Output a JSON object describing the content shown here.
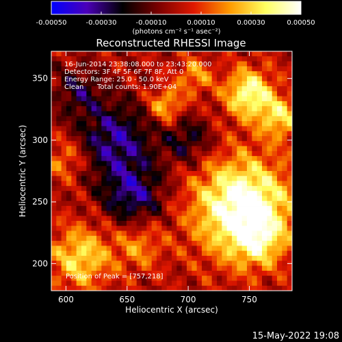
{
  "chart_data": {
    "type": "heatmap",
    "title": "Reconstructed RHESSI Image",
    "xlabel": "Heliocentric X (arcsec)",
    "ylabel": "Heliocentric Y (arcsec)",
    "xlim": [
      588,
      785
    ],
    "ylim": [
      178,
      372
    ],
    "x_ticks": [
      "600",
      "650",
      "700",
      "750"
    ],
    "x_tick_values": [
      600,
      650,
      700,
      750
    ],
    "y_ticks": [
      "200",
      "250",
      "300",
      "350"
    ],
    "y_tick_values": [
      200,
      250,
      300,
      350
    ],
    "colorbar": {
      "range": [
        -0.0005,
        0.0005
      ],
      "ticks": [
        "-0.00050",
        "-0.00030",
        "-0.00010",
        "0.00010",
        "0.00030",
        "0.00050"
      ],
      "tick_values": [
        -0.0005,
        -0.0003,
        -0.0001,
        0.0001,
        0.0003,
        0.0005
      ],
      "unit_label": "(photons cm⁻² s⁻¹ asec⁻²)",
      "colormap": [
        "#0000ff",
        "#4b00b8",
        "#000000",
        "#7a0000",
        "#e01800",
        "#ff9a00",
        "#ffff60",
        "#ffffff"
      ]
    },
    "annotations": [
      "16-Jun-2014 23:38:08.000 to 23:43:20.000",
      "Detectors: 3F 4F 5F 6F 7F 8F, Att 0",
      "Energy Range: 25.0 - 50.0 keV",
      "Clean",
      "Total counts: 1.90E+04"
    ],
    "peak_label": "Position of Peak = [757,218]",
    "peak_position": [
      757,
      218
    ],
    "sources": [
      {
        "x": 745,
        "y": 245,
        "sigma": 28,
        "amp": 0.00055
      },
      {
        "x": 757,
        "y": 218,
        "sigma": 14,
        "amp": 0.0002
      },
      {
        "x": 750,
        "y": 338,
        "sigma": 14,
        "amp": 0.00042
      },
      {
        "x": 775,
        "y": 318,
        "sigma": 12,
        "amp": 0.0003
      },
      {
        "x": 682,
        "y": 328,
        "sigma": 10,
        "amp": 0.00028
      },
      {
        "x": 612,
        "y": 205,
        "sigma": 18,
        "amp": 0.00032
      },
      {
        "x": 600,
        "y": 285,
        "sigma": 12,
        "amp": 0.0002
      },
      {
        "x": 660,
        "y": 215,
        "sigma": 14,
        "amp": 0.0002
      },
      {
        "x": 705,
        "y": 352,
        "sigma": 10,
        "amp": 0.00022
      },
      {
        "x": 640,
        "y": 300,
        "sigma": 22,
        "amp": -0.00032
      },
      {
        "x": 655,
        "y": 255,
        "sigma": 18,
        "amp": -0.0003
      },
      {
        "x": 700,
        "y": 300,
        "sigma": 14,
        "amp": -0.00022
      },
      {
        "x": 610,
        "y": 340,
        "sigma": 14,
        "amp": -0.0002
      }
    ]
  },
  "footer": {
    "timestamp": "15-May-2022 19:08"
  }
}
